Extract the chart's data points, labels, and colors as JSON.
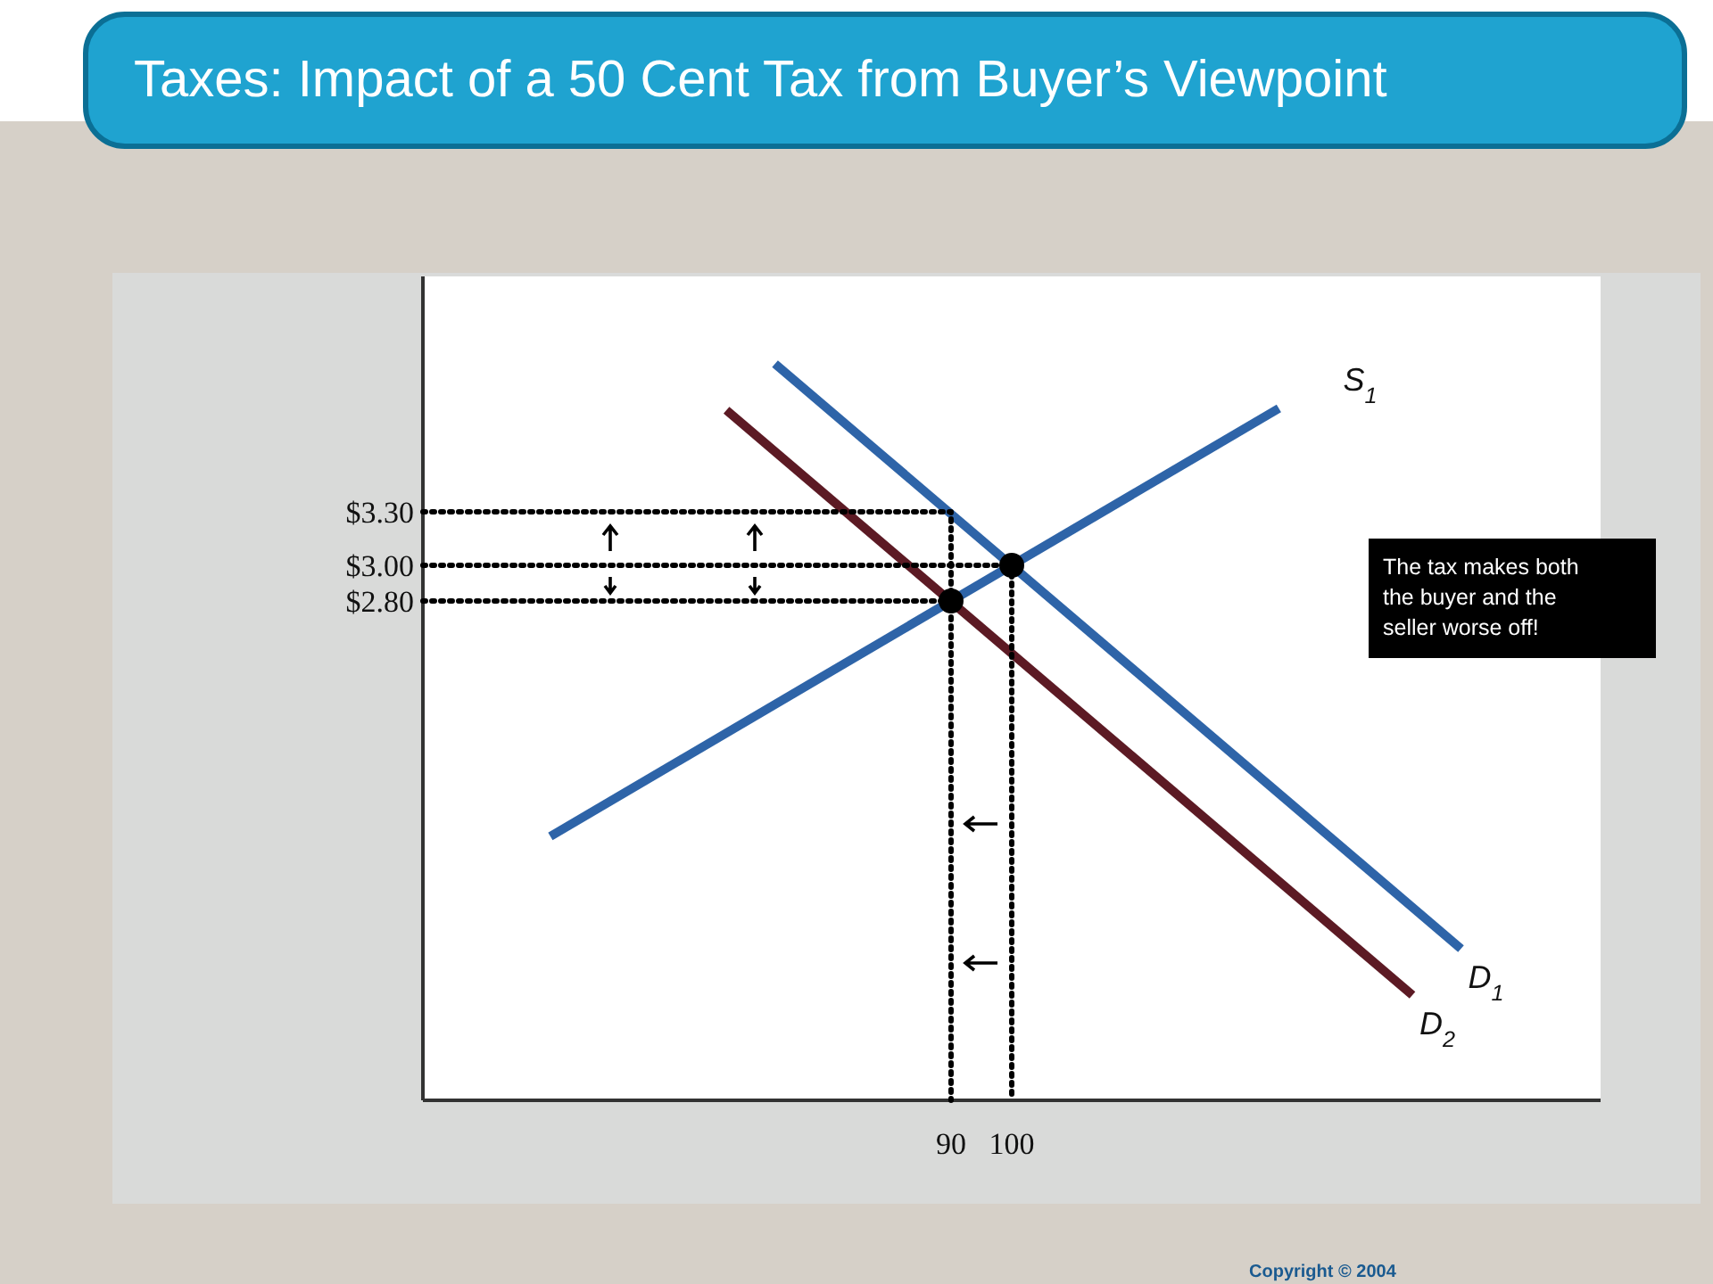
{
  "chart_data": {
    "type": "line",
    "title": "Taxes: Impact of a 50 Cent Tax from Buyer’s Viewpoint",
    "annotations": [
      "The tax makes both the buyer and the seller worse off!",
      "Copyright © 2004"
    ],
    "xlim": [
      3,
      197
    ],
    "ylim": [
      0,
      4.62
    ],
    "xticks": [
      90,
      100
    ],
    "yticks": [
      {
        "value": 3.3,
        "label": "$3.30"
      },
      {
        "value": 3.0,
        "label": "$3.00"
      },
      {
        "value": 2.8,
        "label": "$2.80"
      }
    ],
    "grid": false,
    "series": [
      {
        "name": "S$_{1}$",
        "color": "#2e64a8",
        "x": [
          24,
          144
        ],
        "values": [
          1.48,
          3.88
        ]
      },
      {
        "name": "D$_{1}$",
        "color": "#2e64a8",
        "x": [
          61,
          174
        ],
        "values": [
          4.13,
          0.85
        ]
      },
      {
        "name": "D$_{2}$",
        "color": "#5c1a24",
        "x": [
          53,
          166
        ],
        "values": [
          3.87,
          0.59
        ]
      },
      {
        "color": "#000000",
        "x": [
          3,
          90,
          90
        ],
        "values": [
          3.3,
          3.3,
          0
        ],
        "line_style": "dotted"
      },
      {
        "color": "#000000",
        "x": [
          3,
          100,
          100
        ],
        "values": [
          3.0,
          3.0,
          0
        ],
        "line_style": "dotted"
      },
      {
        "color": "#000000",
        "x": [
          3,
          90
        ],
        "values": [
          2.8,
          2.8
        ],
        "line_style": "dotted"
      },
      {
        "type": "scatter",
        "marker": "circle",
        "color": "#000000",
        "x": [
          100,
          90
        ],
        "values": [
          3.0,
          2.8
        ]
      }
    ]
  }
}
